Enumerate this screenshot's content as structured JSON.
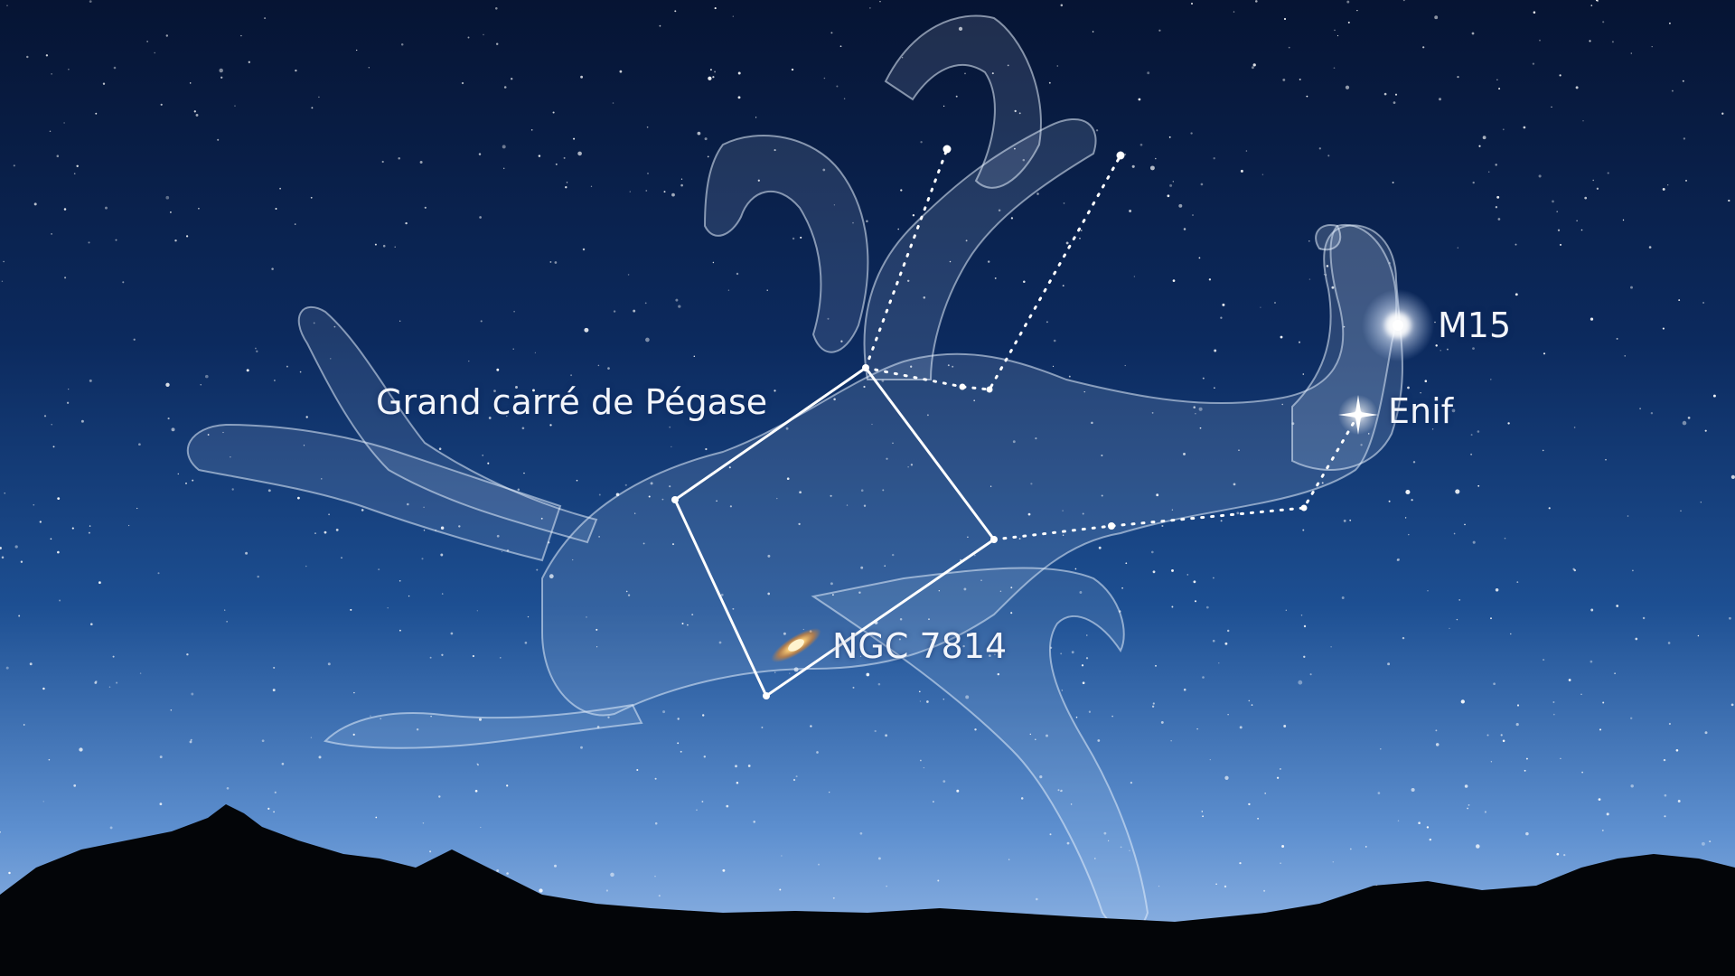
{
  "image": {
    "subject": "night-sky-constellation-pegasus",
    "colors": {
      "sky_top": "#061433",
      "sky_mid": "#123a78",
      "sky_horizon": "#8fb4e6",
      "figure_fill": "#c9dcf5",
      "lines": "#ffffff",
      "mountains": "#030508",
      "galaxy_core": "#ffd27a",
      "galaxy_halo": "#d9822b"
    }
  },
  "labels": {
    "great_square": "Grand carré de Pégase",
    "ngc7814": "NGC 7814",
    "m15": "M15",
    "enif": "Enif"
  }
}
